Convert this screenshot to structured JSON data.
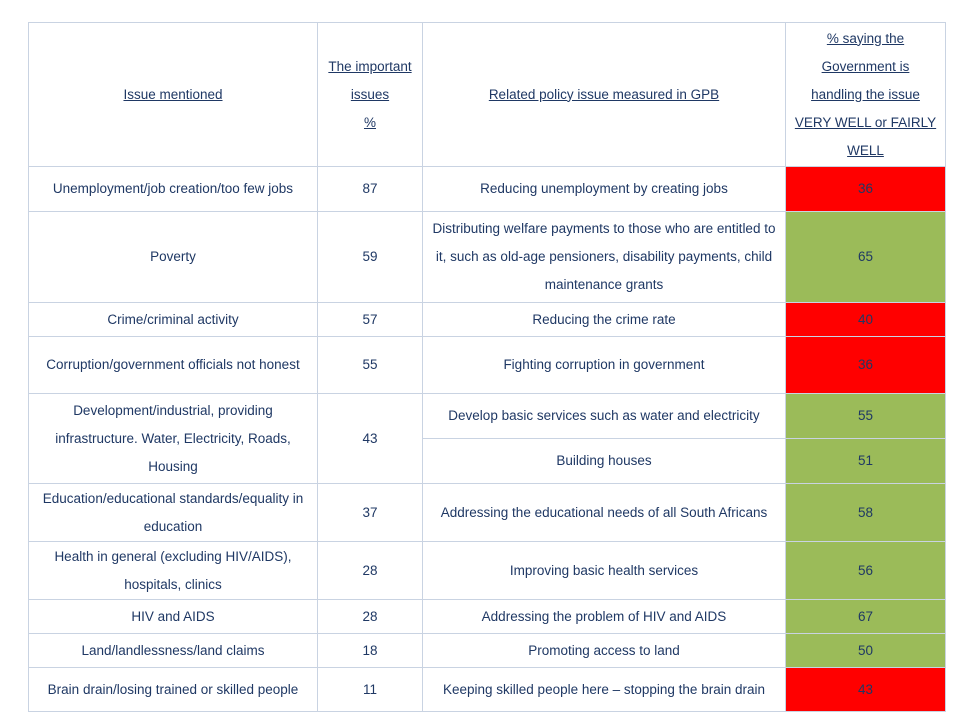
{
  "headers": {
    "issue": "Issue mentioned",
    "important_l1": "The important",
    "important_l2": "issues",
    "important_l3": "%",
    "policy": "Related policy issue measured in GPB",
    "pct_l1": "% saying the",
    "pct_l2": "Government is",
    "pct_l3": "handling the issue",
    "pct_l4": "VERY WELL or FAIRLY",
    "pct_l5": "WELL"
  },
  "rows": [
    {
      "issue": "Unemployment/job creation/too few jobs",
      "important": "87",
      "policy": "Reducing unemployment by creating jobs",
      "pct": "36",
      "status": "red"
    },
    {
      "issue": "Poverty",
      "important": "59",
      "policy": "Distributing welfare payments to those who are entitled to it, such as old-age pensioners, disability payments, child maintenance grants",
      "pct": "65",
      "status": "green"
    },
    {
      "issue": "Crime/criminal activity",
      "important": "57",
      "policy": "Reducing the crime rate",
      "pct": "40",
      "status": "red"
    },
    {
      "issue": "Corruption/government officials not honest",
      "important": "55",
      "policy": "Fighting corruption in government",
      "pct": "36",
      "status": "red"
    },
    {
      "issue": "Development/industrial, providing infrastructure. Water, Electricity, Roads, Housing",
      "important": "43",
      "policy": "Develop basic services such as water and electricity",
      "pct": "55",
      "status": "green"
    },
    {
      "issue": "",
      "important": "",
      "policy": "Building houses",
      "pct": "51",
      "status": "green"
    },
    {
      "issue": "Education/educational standards/equality in education",
      "important": "37",
      "policy": "Addressing the educational needs of all South Africans",
      "pct": "58",
      "status": "green"
    },
    {
      "issue": "Health in general (excluding HIV/AIDS), hospitals, clinics",
      "important": "28",
      "policy": "Improving basic health services",
      "pct": "56",
      "status": "green"
    },
    {
      "issue": "HIV and AIDS",
      "important": "28",
      "policy": "Addressing the problem of HIV and AIDS",
      "pct": "67",
      "status": "green"
    },
    {
      "issue": "Land/landlessness/land claims",
      "important": "18",
      "policy": "Promoting access to land",
      "pct": "50",
      "status": "green"
    },
    {
      "issue": "Brain drain/losing trained or skilled people",
      "important": "11",
      "policy": "Keeping skilled people here – stopping the brain drain",
      "pct": "43",
      "status": "red"
    }
  ],
  "colors": {
    "red": "#ff0000",
    "green": "#9bbb59",
    "text": "#1f3864"
  }
}
